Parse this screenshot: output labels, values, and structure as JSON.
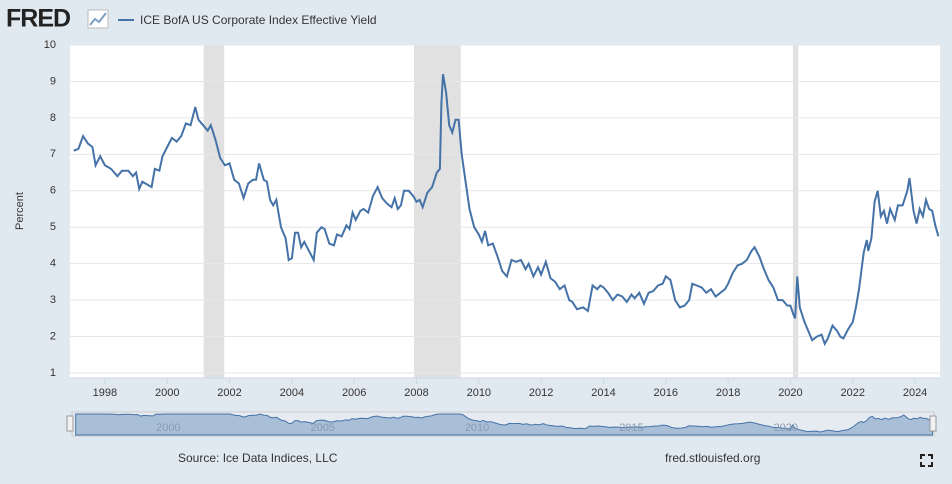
{
  "header": {
    "logo": "FRED"
  },
  "chart_data": {
    "type": "line",
    "y_label": "Percent",
    "xlim": [
      1996.88,
      2024.8
    ],
    "ylim": [
      1,
      10
    ],
    "yticks": [
      1,
      2,
      3,
      4,
      5,
      6,
      7,
      8,
      9,
      10
    ],
    "xticks": [
      1998,
      2000,
      2002,
      2004,
      2006,
      2008,
      2010,
      2012,
      2014,
      2016,
      2018,
      2020,
      2022,
      2024
    ],
    "grid": true,
    "recessions": [
      [
        2001.17,
        2001.83
      ],
      [
        2007.92,
        2009.42
      ],
      [
        2020.08,
        2020.25
      ]
    ],
    "navigator_ticks": [
      2000,
      2005,
      2010,
      2015,
      2020
    ],
    "series": [
      {
        "name": "ICE BofA US Corporate Index Effective Yield",
        "color": "#4572a7",
        "x": [
          1997.0,
          1997.15,
          1997.3,
          1997.45,
          1997.6,
          1997.7,
          1997.85,
          1998.0,
          1998.2,
          1998.4,
          1998.55,
          1998.75,
          1998.9,
          1999.0,
          1999.1,
          1999.2,
          1999.4,
          1999.5,
          1999.6,
          1999.75,
          1999.85,
          2000.0,
          2000.15,
          2000.3,
          2000.45,
          2000.6,
          2000.75,
          2000.9,
          2001.0,
          2001.15,
          2001.3,
          2001.4,
          2001.55,
          2001.7,
          2001.85,
          2002.0,
          2002.15,
          2002.3,
          2002.45,
          2002.6,
          2002.75,
          2002.85,
          2002.95,
          2003.1,
          2003.2,
          2003.3,
          2003.4,
          2003.5,
          2003.55,
          2003.65,
          2003.7,
          2003.8,
          2003.9,
          2004.0,
          2004.1,
          2004.2,
          2004.3,
          2004.4,
          2004.55,
          2004.7,
          2004.8,
          2004.95,
          2005.05,
          2005.2,
          2005.35,
          2005.45,
          2005.6,
          2005.75,
          2005.85,
          2005.95,
          2006.05,
          2006.2,
          2006.3,
          2006.45,
          2006.6,
          2006.75,
          2006.9,
          2007.05,
          2007.2,
          2007.3,
          2007.4,
          2007.5,
          2007.6,
          2007.75,
          2007.9,
          2008.0,
          2008.1,
          2008.2,
          2008.35,
          2008.5,
          2008.65,
          2008.75,
          2008.8,
          2008.85,
          2008.95,
          2009.05,
          2009.15,
          2009.25,
          2009.35,
          2009.45,
          2009.55,
          2009.7,
          2009.85,
          2010.0,
          2010.1,
          2010.2,
          2010.3,
          2010.45,
          2010.6,
          2010.75,
          2010.9,
          2011.05,
          2011.2,
          2011.35,
          2011.5,
          2011.6,
          2011.75,
          2011.9,
          2012.0,
          2012.15,
          2012.3,
          2012.45,
          2012.6,
          2012.75,
          2012.9,
          2013.0,
          2013.15,
          2013.35,
          2013.5,
          2013.65,
          2013.8,
          2013.9,
          2014.0,
          2014.15,
          2014.3,
          2014.45,
          2014.6,
          2014.75,
          2014.9,
          2015.0,
          2015.15,
          2015.3,
          2015.45,
          2015.6,
          2015.75,
          2015.9,
          2016.0,
          2016.15,
          2016.3,
          2016.45,
          2016.6,
          2016.75,
          2016.85,
          2017.0,
          2017.15,
          2017.3,
          2017.45,
          2017.6,
          2017.75,
          2017.9,
          2018.0,
          2018.15,
          2018.3,
          2018.45,
          2018.6,
          2018.75,
          2018.85,
          2019.0,
          2019.15,
          2019.3,
          2019.45,
          2019.6,
          2019.75,
          2019.9,
          2020.0,
          2020.1,
          2020.15,
          2020.22,
          2020.3,
          2020.45,
          2020.6,
          2020.7,
          2020.85,
          2021.0,
          2021.1,
          2021.2,
          2021.35,
          2021.5,
          2021.6,
          2021.7,
          2021.85,
          2022.0,
          2022.1,
          2022.2,
          2022.35,
          2022.45,
          2022.5,
          2022.6,
          2022.7,
          2022.8,
          2022.9,
          2023.0,
          2023.1,
          2023.2,
          2023.35,
          2023.45,
          2023.6,
          2023.75,
          2023.82,
          2023.95,
          2024.05,
          2024.15,
          2024.25,
          2024.35,
          2024.45,
          2024.55,
          2024.65,
          2024.75
        ],
        "values": [
          7.1,
          7.15,
          7.5,
          7.3,
          7.2,
          6.7,
          6.95,
          6.7,
          6.6,
          6.4,
          6.55,
          6.55,
          6.4,
          6.5,
          6.05,
          6.25,
          6.15,
          6.1,
          6.6,
          6.55,
          6.95,
          7.2,
          7.45,
          7.35,
          7.5,
          7.85,
          7.8,
          8.3,
          7.95,
          7.8,
          7.65,
          7.8,
          7.4,
          6.9,
          6.7,
          6.75,
          6.3,
          6.2,
          5.8,
          6.2,
          6.3,
          6.3,
          6.75,
          6.3,
          6.25,
          5.75,
          5.6,
          5.75,
          5.5,
          5.0,
          4.9,
          4.7,
          4.1,
          4.15,
          4.85,
          4.85,
          4.45,
          4.6,
          4.35,
          4.1,
          4.85,
          5.0,
          4.95,
          4.55,
          4.5,
          4.8,
          4.75,
          5.05,
          4.95,
          5.4,
          5.2,
          5.45,
          5.5,
          5.4,
          5.85,
          6.1,
          5.8,
          5.65,
          5.55,
          5.8,
          5.5,
          5.6,
          6.0,
          6.0,
          5.85,
          5.7,
          5.75,
          5.55,
          5.95,
          6.1,
          6.5,
          6.6,
          8.4,
          9.2,
          8.7,
          7.8,
          7.6,
          7.95,
          7.95,
          7.0,
          6.4,
          5.5,
          5.0,
          4.8,
          4.6,
          4.9,
          4.5,
          4.55,
          4.2,
          3.8,
          3.65,
          4.1,
          4.05,
          4.1,
          3.85,
          4.0,
          3.65,
          3.9,
          3.7,
          4.05,
          3.6,
          3.5,
          3.3,
          3.4,
          3.0,
          2.95,
          2.75,
          2.8,
          2.7,
          3.4,
          3.3,
          3.4,
          3.35,
          3.2,
          3.0,
          3.15,
          3.1,
          2.95,
          3.15,
          3.05,
          3.2,
          2.9,
          3.2,
          3.25,
          3.4,
          3.45,
          3.65,
          3.55,
          3.0,
          2.8,
          2.85,
          3.0,
          3.45,
          3.4,
          3.35,
          3.2,
          3.3,
          3.1,
          3.2,
          3.3,
          3.45,
          3.75,
          3.95,
          4.0,
          4.1,
          4.35,
          4.45,
          4.2,
          3.85,
          3.55,
          3.35,
          3.0,
          3.0,
          2.85,
          2.85,
          2.6,
          2.5,
          3.65,
          2.8,
          2.4,
          2.1,
          1.9,
          2.0,
          2.05,
          1.8,
          1.95,
          2.3,
          2.15,
          2.0,
          1.95,
          2.2,
          2.4,
          2.8,
          3.3,
          4.3,
          4.65,
          4.35,
          4.7,
          5.7,
          6.0,
          5.3,
          5.45,
          5.1,
          5.5,
          5.2,
          5.6,
          5.6,
          6.0,
          6.35,
          5.45,
          5.1,
          5.5,
          5.3,
          5.75,
          5.5,
          5.45,
          5.05,
          4.75
        ]
      }
    ]
  },
  "footer": {
    "source": "Source: Ice Data Indices, LLC",
    "url": "fred.stlouisfed.org"
  }
}
